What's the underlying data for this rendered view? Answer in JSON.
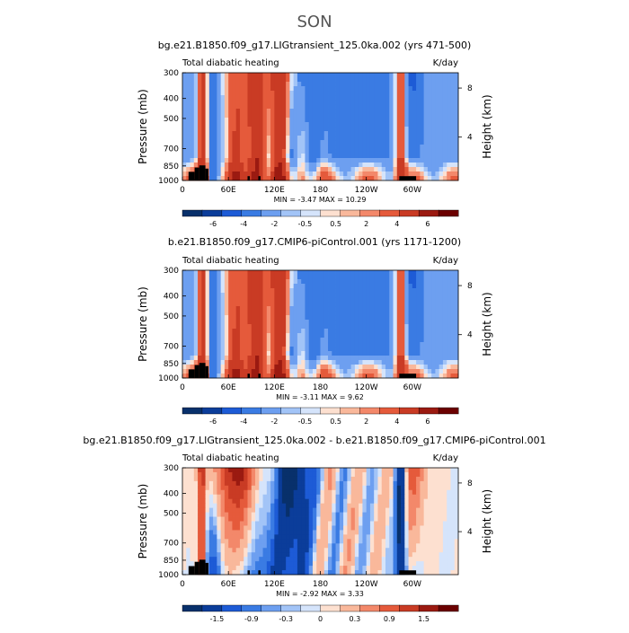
{
  "page": {
    "title": "SON"
  },
  "panel_common": {
    "left_label": "Total diabatic heating",
    "right_label": "K/day",
    "ylabel_left": "Pressure  (mb)",
    "ylabel_right": "Height  (km)"
  },
  "chart_data": [
    {
      "type": "heatmap",
      "title": "bg.e21.B1850.f09_g17.LIGtransient_125.0ka.002 (yrs 471-500)",
      "x_ticks": [
        "0",
        "60E",
        "120E",
        "180",
        "120W",
        "60W"
      ],
      "x_tick_values": [
        0,
        60,
        120,
        180,
        240,
        300
      ],
      "xlim": [
        0,
        360
      ],
      "y_ticks": [
        "300",
        "400",
        "500",
        "700",
        "850",
        "1000"
      ],
      "y_tick_values": [
        300,
        400,
        500,
        700,
        850,
        1000
      ],
      "ylim": [
        1000,
        300
      ],
      "y_scale": "log",
      "right_ticks": [
        "8",
        "4"
      ],
      "right_tick_pressures": [
        356,
        616
      ],
      "stats": "MIN =   -3.47   MAX =   10.29",
      "colorbar_ticks": [
        "-6",
        "-4",
        "-2",
        "-0.5",
        "0.5",
        "2",
        "4",
        "6"
      ],
      "colorbar_colors": [
        "#08306b",
        "#0b3d9a",
        "#1d5bd6",
        "#3a7be3",
        "#6d9ff0",
        "#a2c4f7",
        "#d5e4fb",
        "#fde0d0",
        "#f9b89b",
        "#f3886a",
        "#e55a3b",
        "#c93b24",
        "#9b1a11",
        "#6b0000"
      ],
      "field": "heating"
    },
    {
      "type": "heatmap",
      "title": "b.e21.B1850.f09_g17.CMIP6-piControl.001 (yrs 1171-1200)",
      "x_ticks": [
        "0",
        "60E",
        "120E",
        "180",
        "120W",
        "60W"
      ],
      "x_tick_values": [
        0,
        60,
        120,
        180,
        240,
        300
      ],
      "xlim": [
        0,
        360
      ],
      "y_ticks": [
        "300",
        "400",
        "500",
        "700",
        "850",
        "1000"
      ],
      "y_tick_values": [
        300,
        400,
        500,
        700,
        850,
        1000
      ],
      "ylim": [
        1000,
        300
      ],
      "y_scale": "log",
      "right_ticks": [
        "8",
        "4"
      ],
      "right_tick_pressures": [
        356,
        616
      ],
      "stats": "MIN =   -3.11   MAX =   9.62",
      "colorbar_ticks": [
        "-6",
        "-4",
        "-2",
        "-0.5",
        "0.5",
        "2",
        "4",
        "6"
      ],
      "colorbar_colors": [
        "#08306b",
        "#0b3d9a",
        "#1d5bd6",
        "#3a7be3",
        "#6d9ff0",
        "#a2c4f7",
        "#d5e4fb",
        "#fde0d0",
        "#f9b89b",
        "#f3886a",
        "#e55a3b",
        "#c93b24",
        "#9b1a11",
        "#6b0000"
      ],
      "field": "heating"
    },
    {
      "type": "heatmap",
      "title": "bg.e21.B1850.f09_g17.LIGtransient_125.0ka.002 - b.e21.B1850.f09_g17.CMIP6-piControl.001",
      "x_ticks": [
        "0",
        "60E",
        "120E",
        "180",
        "120W",
        "60W"
      ],
      "x_tick_values": [
        0,
        60,
        120,
        180,
        240,
        300
      ],
      "xlim": [
        0,
        360
      ],
      "y_ticks": [
        "300",
        "400",
        "500",
        "700",
        "850",
        "1000"
      ],
      "y_tick_values": [
        300,
        400,
        500,
        700,
        850,
        1000
      ],
      "ylim": [
        1000,
        300
      ],
      "y_scale": "log",
      "right_ticks": [
        "8",
        "4"
      ],
      "right_tick_pressures": [
        356,
        616
      ],
      "stats": "MIN =   -2.92   MAX =   3.33",
      "colorbar_ticks": [
        "-1.5",
        "-0.9",
        "-0.3",
        "0",
        "0.3",
        "0.9",
        "1.5"
      ],
      "colorbar_colors": [
        "#08306b",
        "#0b3d9a",
        "#1d5bd6",
        "#3a7be3",
        "#6d9ff0",
        "#a2c4f7",
        "#d5e4fb",
        "#fde0d0",
        "#f9b89b",
        "#f3886a",
        "#e55a3b",
        "#c93b24",
        "#9b1a11",
        "#6b0000"
      ],
      "field": "difference"
    }
  ]
}
